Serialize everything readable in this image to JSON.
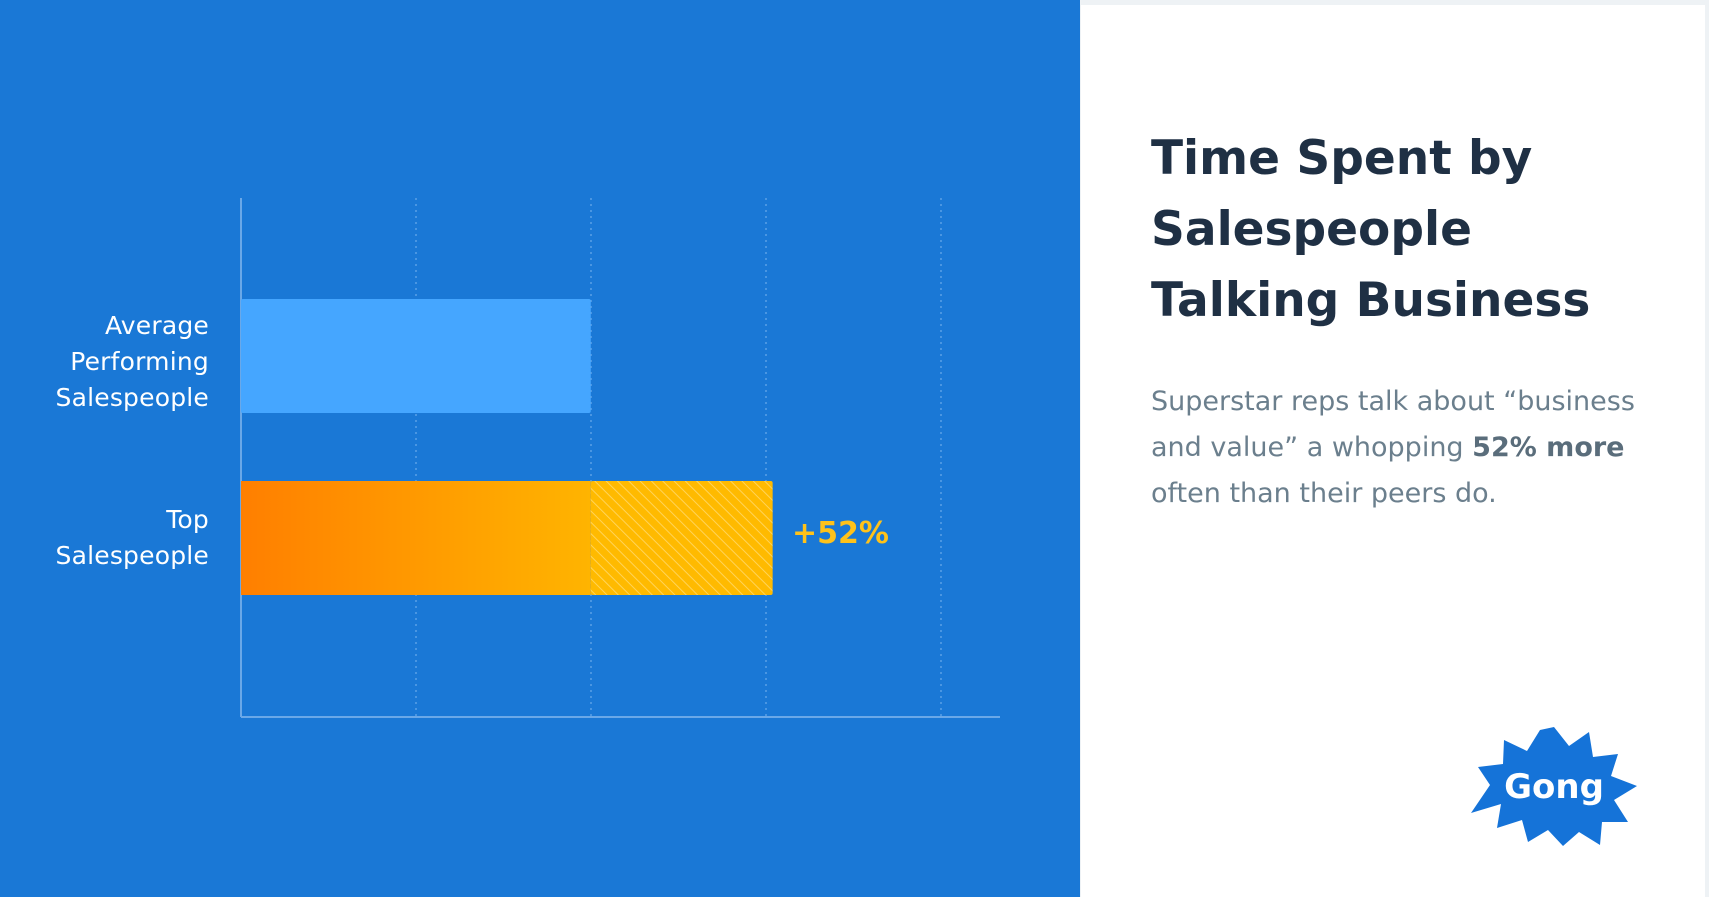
{
  "chart_data": {
    "type": "bar",
    "orientation": "horizontal",
    "categories": [
      "Average\nPerforming\nSalespeople",
      "Top\nSalespeople"
    ],
    "values": [
      1.0,
      1.52
    ],
    "xlim": [
      0,
      2.17
    ],
    "grid": true,
    "annotation": "+52%",
    "colors": {
      "average_bar": "#45a6ff",
      "top_bar_start": "#ff7f00",
      "top_bar_end": "#ffb400",
      "top_bar_increase": "#ffba00",
      "annotation": "#ffc21a",
      "background": "#1a78d6"
    }
  },
  "title": "Time Spent by Salespeople Talking Business",
  "description": {
    "part1": "Superstar reps talk about “business and value” a whopping ",
    "bold": "52% more",
    "part2": " often than their peers do."
  },
  "logo": {
    "text": "Gong",
    "icon": "gong-starburst-logo",
    "color": "#1573d8"
  }
}
